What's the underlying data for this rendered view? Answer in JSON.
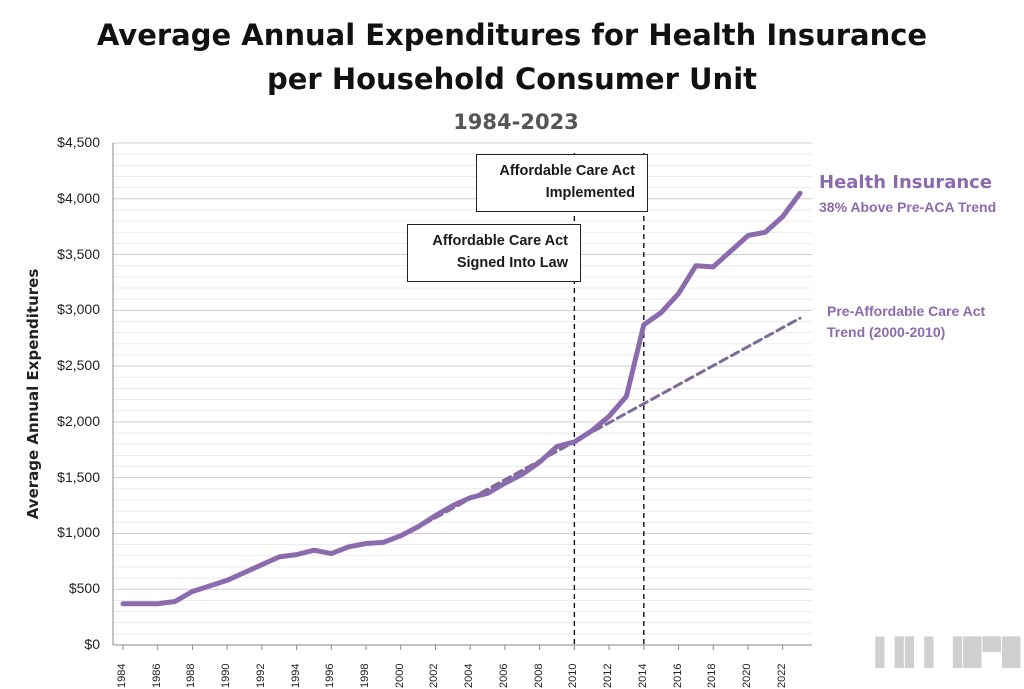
{
  "title_line1": "Average Annual Expenditures for Health Insurance",
  "title_line2": "per Household Consumer Unit",
  "subtitle": "1984-2023",
  "watermark": "▐▐▌▌▐█▀█",
  "colors": {
    "series": "#8b6aae",
    "trend": "#7d6a96",
    "grid": "#d9d9d9",
    "annotation_line": "#111111"
  },
  "annotations": {
    "aca_implemented": {
      "line1": "Affordable Care Act",
      "line2": "Implemented",
      "year": 2014
    },
    "aca_signed": {
      "line1": "Affordable Care Act",
      "line2": "Signed Into Law",
      "year": 2010
    }
  },
  "series_labels": {
    "main_name": "Health Insurance",
    "main_note": "38% Above Pre-ACA Trend",
    "trend_line1": "Pre-Affordable Care Act",
    "trend_line2": "Trend (2000-2010)"
  },
  "chart_data": {
    "type": "line",
    "title": "Average Annual Expenditures for Health Insurance per Household Consumer Unit",
    "subtitle": "1984-2023",
    "xlabel": "",
    "ylabel": "Average Annual Expenditures",
    "xlim": [
      1984,
      2023
    ],
    "ylim": [
      0,
      4500
    ],
    "ytick_values": [
      0,
      500,
      1000,
      1500,
      2000,
      2500,
      3000,
      3500,
      4000,
      4500
    ],
    "ytick_labels": [
      "$0",
      "$500",
      "$1,000",
      "$1,500",
      "$2,000",
      "$2,500",
      "$3,000",
      "$3,500",
      "$4,000",
      "$4,500"
    ],
    "xtick_labels": [
      "1984",
      "1986",
      "1988",
      "1990",
      "1992",
      "1994",
      "1996",
      "1998",
      "2000",
      "2002",
      "2004",
      "2006",
      "2008",
      "2010",
      "2012",
      "2014",
      "2016",
      "2018",
      "2020",
      "2022"
    ],
    "grid": true,
    "series": [
      {
        "name": "Health Insurance",
        "x": [
          1984,
          1985,
          1986,
          1987,
          1988,
          1989,
          1990,
          1991,
          1992,
          1993,
          1994,
          1995,
          1996,
          1997,
          1998,
          1999,
          2000,
          2001,
          2002,
          2003,
          2004,
          2005,
          2006,
          2007,
          2008,
          2009,
          2010,
          2011,
          2012,
          2013,
          2014,
          2015,
          2016,
          2017,
          2018,
          2019,
          2020,
          2021,
          2022,
          2023
        ],
        "values": [
          370,
          370,
          370,
          390,
          480,
          530,
          580,
          650,
          720,
          790,
          810,
          850,
          820,
          880,
          910,
          920,
          980,
          1060,
          1160,
          1250,
          1320,
          1360,
          1450,
          1530,
          1640,
          1780,
          1820,
          1920,
          2050,
          2230,
          2870,
          2980,
          3150,
          3400,
          3390,
          3530,
          3670,
          3700,
          3840,
          4050
        ]
      },
      {
        "name": "Pre-Affordable Care Act Trend (2000-2010)",
        "style": "dashed",
        "x": [
          2000,
          2023
        ],
        "values": [
          970,
          2930
        ]
      }
    ]
  }
}
